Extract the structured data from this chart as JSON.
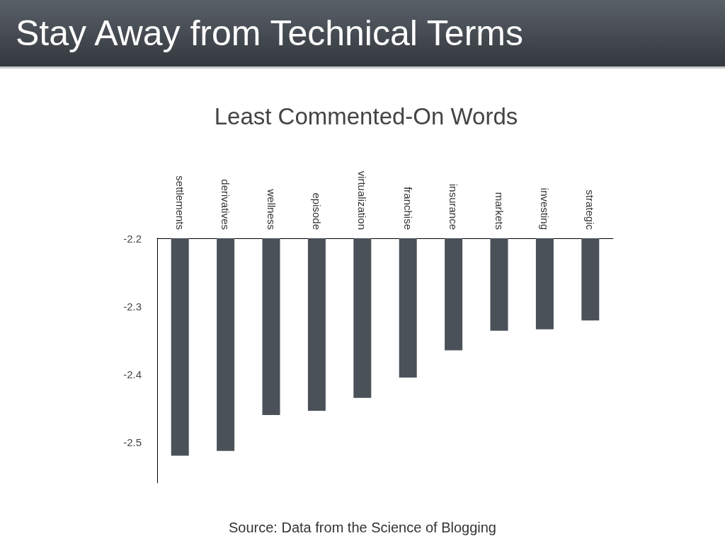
{
  "chart_data": {
    "type": "bar",
    "title": "Stay Away from Technical Terms",
    "subtitle": "Least Commented-On Words",
    "categories": [
      "settlements",
      "derivatives",
      "wellness",
      "episode",
      "virtualization",
      "franchise",
      "insurance",
      "markets",
      "investing",
      "strategic"
    ],
    "values": [
      -2.52,
      -2.513,
      -2.46,
      -2.454,
      -2.435,
      -2.405,
      -2.365,
      -2.336,
      -2.334,
      -2.321
    ],
    "color": "#4a5159",
    "ylim": [
      -2.56,
      -2.2
    ],
    "yticks": [
      -2.2,
      -2.3,
      -2.4,
      -2.5
    ],
    "grid": false,
    "annotations": [
      "Source: Data from the Science of Blogging"
    ]
  }
}
